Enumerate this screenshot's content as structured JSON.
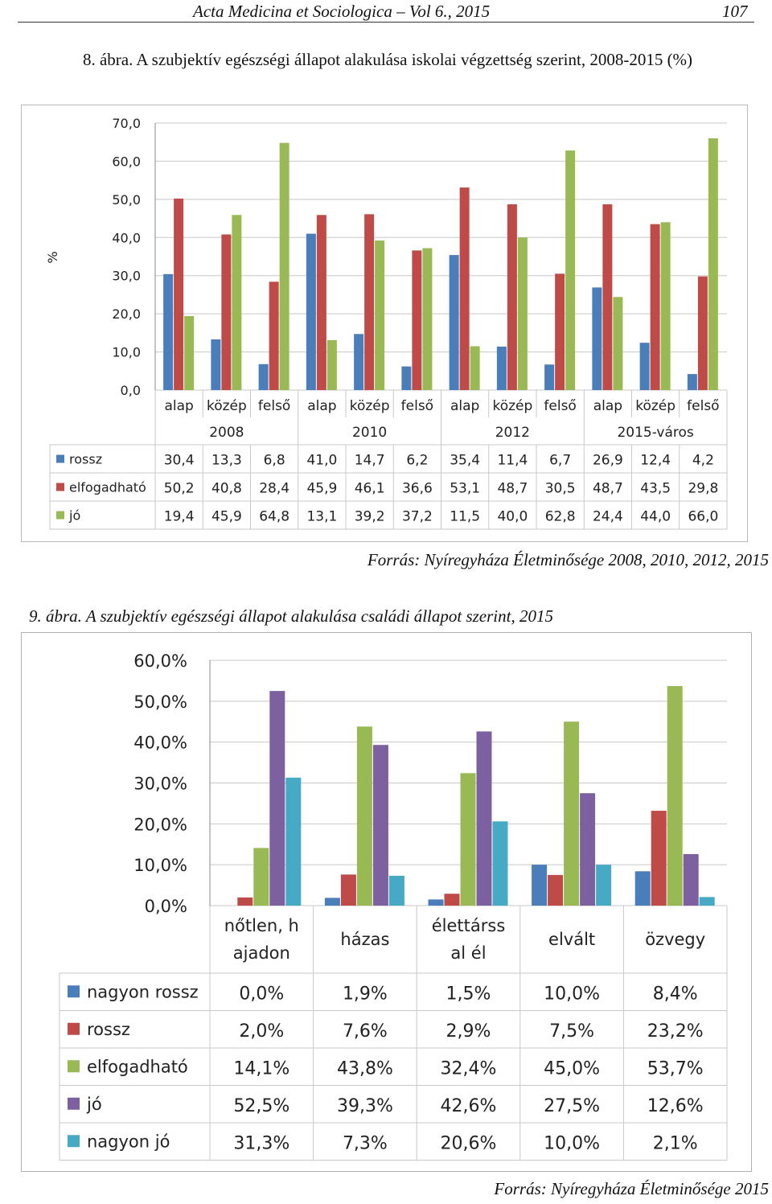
{
  "header": {
    "journal": "Acta Medicina et Sociologica – Vol 6., 2015",
    "page": "107"
  },
  "figure1": {
    "label": "8. ábra.",
    "caption": "A szubjektív egészségi állapot alakulása iskolai végzettség szerint, 2008-2015 (%)",
    "source": "Forrás: Nyíregyháza Életminősége 2008, 2010, 2012, 2015"
  },
  "figure2": {
    "label": "9. ábra.",
    "caption": "A szubjektív egészségi állapot alakulása családi állapot szerint, 2015",
    "source": "Forrás: Nyíregyháza Életminősége 2015"
  },
  "colors": {
    "blue": "#4a7ebb",
    "red": "#be4b48",
    "green": "#98b954",
    "purple": "#7d60a0",
    "teal": "#46aac5"
  },
  "chart_data": [
    {
      "type": "bar",
      "ylabel": "%",
      "ylim": [
        0,
        70
      ],
      "ytick_labels": [
        "0,0",
        "10,0",
        "20,0",
        "30,0",
        "40,0",
        "50,0",
        "60,0",
        "70,0"
      ],
      "groups": [
        "2008",
        "2010",
        "2012",
        "2015-város"
      ],
      "categories": [
        "alap",
        "közép",
        "felső",
        "alap",
        "közép",
        "felső",
        "alap",
        "közép",
        "felső",
        "alap",
        "közép",
        "felső"
      ],
      "grid": true,
      "legend": "data-table",
      "series": [
        {
          "name": "rossz",
          "color": "#4a7ebb",
          "values": [
            30.4,
            13.3,
            6.8,
            41.0,
            14.7,
            6.2,
            35.4,
            11.4,
            6.7,
            26.9,
            12.4,
            4.2
          ],
          "labels": [
            "30,4",
            "13,3",
            "6,8",
            "41,0",
            "14,7",
            "6,2",
            "35,4",
            "11,4",
            "6,7",
            "26,9",
            "12,4",
            "4,2"
          ]
        },
        {
          "name": "elfogadható",
          "color": "#be4b48",
          "values": [
            50.2,
            40.8,
            28.4,
            45.9,
            46.1,
            36.6,
            53.1,
            48.7,
            30.5,
            48.7,
            43.5,
            29.8
          ],
          "labels": [
            "50,2",
            "40,8",
            "28,4",
            "45,9",
            "46,1",
            "36,6",
            "53,1",
            "48,7",
            "30,5",
            "48,7",
            "43,5",
            "29,8"
          ]
        },
        {
          "name": "jó",
          "color": "#98b954",
          "values": [
            19.4,
            45.9,
            64.8,
            13.1,
            39.2,
            37.2,
            11.5,
            40.0,
            62.8,
            24.4,
            44.0,
            66.0
          ],
          "labels": [
            "19,4",
            "45,9",
            "64,8",
            "13,1",
            "39,2",
            "37,2",
            "11,5",
            "40,0",
            "62,8",
            "24,4",
            "44,0",
            "66,0"
          ]
        }
      ]
    },
    {
      "type": "bar",
      "ylim": [
        0,
        60
      ],
      "ytick_labels": [
        "0,0%",
        "10,0%",
        "20,0%",
        "30,0%",
        "40,0%",
        "50,0%",
        "60,0%"
      ],
      "categories": [
        [
          "nőtlen, h",
          "ajadon"
        ],
        [
          "házas"
        ],
        [
          "élettárss",
          "al él"
        ],
        [
          "elvált"
        ],
        [
          "özvegy"
        ]
      ],
      "grid": true,
      "legend": "data-table",
      "series": [
        {
          "name": "nagyon rossz",
          "color": "#4a7ebb",
          "values": [
            0.0,
            1.9,
            1.5,
            10.0,
            8.4
          ],
          "labels": [
            "0,0%",
            "1,9%",
            "1,5%",
            "10,0%",
            "8,4%"
          ]
        },
        {
          "name": "rossz",
          "color": "#be4b48",
          "values": [
            2.0,
            7.6,
            2.9,
            7.5,
            23.2
          ],
          "labels": [
            "2,0%",
            "7,6%",
            "2,9%",
            "7,5%",
            "23,2%"
          ]
        },
        {
          "name": "elfogadható",
          "color": "#98b954",
          "values": [
            14.1,
            43.8,
            32.4,
            45.0,
            53.7
          ],
          "labels": [
            "14,1%",
            "43,8%",
            "32,4%",
            "45,0%",
            "53,7%"
          ]
        },
        {
          "name": "jó",
          "color": "#7d60a0",
          "values": [
            52.5,
            39.3,
            42.6,
            27.5,
            12.6
          ],
          "labels": [
            "52,5%",
            "39,3%",
            "42,6%",
            "27,5%",
            "12,6%"
          ]
        },
        {
          "name": "nagyon jó",
          "color": "#46aac5",
          "values": [
            31.3,
            7.3,
            20.6,
            10.0,
            2.1
          ],
          "labels": [
            "31,3%",
            "7,3%",
            "20,6%",
            "10,0%",
            "2,1%"
          ]
        }
      ]
    }
  ]
}
